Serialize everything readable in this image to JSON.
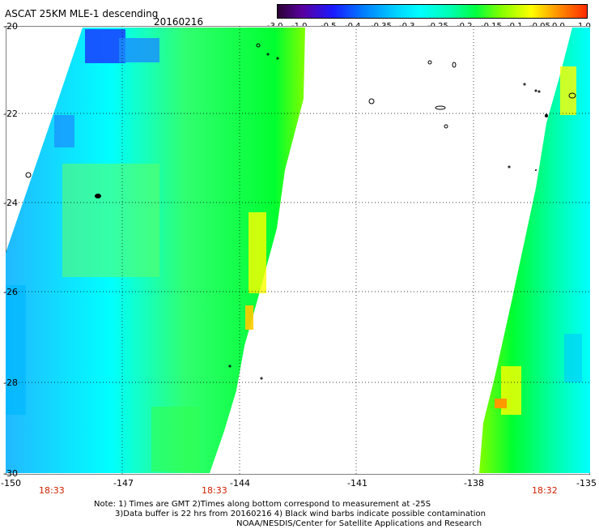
{
  "header": {
    "title": "ASCAT 25KM MLE-1 descending",
    "date": "20160216"
  },
  "colorbar": {
    "ticks": [
      "-3.0",
      "-1.0",
      "-0.5",
      "-0.4",
      "-0.35",
      "-0.3",
      "-0.25",
      "-0.2",
      "-0.15",
      "-0.1",
      "-0.05",
      "0.0",
      "1.0"
    ],
    "colors": [
      "#2a0033",
      "#5a00a0",
      "#1a1aff",
      "#0080ff",
      "#00d0ff",
      "#00ffff",
      "#00ffb0",
      "#00ff40",
      "#80ff00",
      "#ffff00",
      "#ff9900",
      "#ff2a00"
    ]
  },
  "map": {
    "x_ticks": [
      "-150",
      "-147",
      "-144",
      "-141",
      "-138",
      "-135"
    ],
    "y_ticks": [
      "-20",
      "-22",
      "-24",
      "-26",
      "-28",
      "-30"
    ],
    "swath_times": [
      "18:33",
      "18:33",
      "18:32"
    ]
  },
  "note": {
    "line1": "Note: 1) Times are GMT 2)Times along bottom correspond to measurement at -25S",
    "line2": "3)Data buffer is 22 hrs from 20160216 4) Black wind barbs indicate possible contamination",
    "line3": "NOAA/NESDIS/Center for Satellite Applications and Research"
  }
}
